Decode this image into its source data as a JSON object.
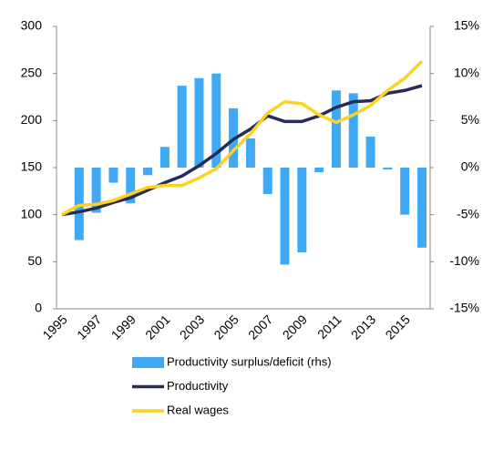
{
  "chart_data": {
    "type": "combo",
    "categories": [
      "1995",
      null,
      "1997",
      null,
      "1999",
      null,
      "2001",
      null,
      "2003",
      null,
      "2005",
      null,
      "2007",
      null,
      "2009",
      null,
      "2011",
      null,
      "2013",
      null,
      "2015",
      null
    ],
    "series": [
      {
        "name": "Productivity surplus/deficit (rhs)",
        "type": "bar",
        "axis": "y2",
        "color": "#3fa9f5",
        "values": [
          0,
          -7.7,
          -4.8,
          -1.6,
          -3.8,
          -0.8,
          2.2,
          8.7,
          9.5,
          10.0,
          6.3,
          3.1,
          -2.8,
          -10.3,
          -9.0,
          -0.5,
          8.2,
          7.9,
          3.3,
          -0.2,
          -5.0,
          -8.5
        ]
      },
      {
        "name": "Productivity",
        "type": "line",
        "color": "#262b5a",
        "values": [
          100,
          103,
          107,
          113,
          118,
          126,
          134,
          141,
          152,
          165,
          180,
          191,
          205,
          199,
          199,
          205,
          214,
          220,
          221,
          229,
          232,
          237
        ]
      },
      {
        "name": "Real wages",
        "type": "line",
        "color": "#ffd21f",
        "values": [
          100,
          110,
          111,
          115,
          122,
          129,
          131,
          131,
          139,
          149,
          168,
          186,
          208,
          220,
          218,
          206,
          198,
          206,
          216,
          232,
          245,
          263
        ]
      }
    ],
    "ylim": [
      0,
      300
    ],
    "yticks": [
      0,
      50,
      100,
      150,
      200,
      250,
      300
    ],
    "y2lim": [
      -15,
      15
    ],
    "y2ticks": [
      {
        "value": -15,
        "label": "-15%"
      },
      {
        "value": -10,
        "label": "-10%"
      },
      {
        "value": -5,
        "label": "-5%"
      },
      {
        "value": 0,
        "label": "0%"
      },
      {
        "value": 5,
        "label": "5%"
      },
      {
        "value": 10,
        "label": "10%"
      },
      {
        "value": 15,
        "label": "15%"
      }
    ]
  }
}
